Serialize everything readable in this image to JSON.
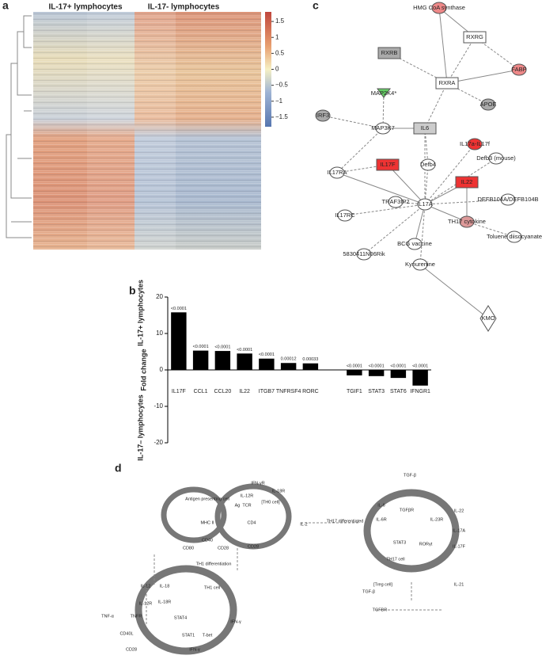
{
  "panel_labels": [
    "a",
    "b",
    "c",
    "d"
  ],
  "heatmap": {
    "column_groups": [
      "IL-17+ lymphocytes",
      "IL-17- lymphocytes"
    ],
    "colorbar_lim": [
      -1.8,
      1.8
    ],
    "colorbar_ticks": [
      1.5,
      1,
      0.5,
      0,
      {
        "value": -0.5,
        "label": "−0.5"
      },
      {
        "value": -1,
        "label": "−1"
      },
      {
        "value": -1.5,
        "label": "−1.5"
      }
    ]
  },
  "chart_data": {
    "type": "bar",
    "ylabel": "Fold change",
    "group_labels": [
      "IL-17+ lymphocytes",
      "IL-17– lymphocytes"
    ],
    "categories": [
      "IL17F",
      "CCL1",
      "CCL20",
      "IL22",
      "ITGB7",
      "TNFRSF4",
      "RORC",
      null,
      "TGIF1",
      "STAT3",
      "STAT6",
      "IFNGR1"
    ],
    "values": [
      15.8,
      5.3,
      5.2,
      4.5,
      3.1,
      1.9,
      1.8,
      null,
      -1.5,
      -1.7,
      -2.2,
      -4.3
    ],
    "p_values": [
      "<0.0001",
      "<0.0001",
      "<0.0001",
      "<0.0001",
      "<0.0001",
      "0.00012",
      "0.00033",
      null,
      "<0.0001",
      "<0.0001",
      "<0.0001",
      "<0.0001"
    ],
    "color": "#000000",
    "ylim": [
      -20,
      20
    ],
    "yticks": [
      -20,
      -10,
      0,
      10,
      20
    ]
  },
  "network": {
    "nodes": [
      "HMG CoA synthase",
      "RXRG",
      "RXRB",
      "FABP",
      "RXRA",
      "MAP2K4*",
      "APOE",
      "IRF3",
      "MAP3K7",
      "IL6",
      "IL17a-IL17f",
      "IL17F",
      "Defb4",
      "Defb3 (mouse)",
      "IL17RA",
      "IL22",
      "TRAF3IP2",
      "IL17A",
      "DEFB104A/DEFB104B",
      "IL17RC",
      "TH17 cytokine",
      "Toluene diisocyanate",
      "BCG vaccine",
      "5830411N06Rik",
      "Kynurenine",
      "KMO"
    ]
  },
  "pathway": {
    "labels": [
      "Antigen presenting cell",
      "MHC II",
      "CD40",
      "Ag",
      "TCR",
      "CD4",
      "IL-12R",
      "IL-18R",
      "[TH0 cell]",
      "CD80",
      "CD28",
      "CD28",
      "IL-2",
      "TH17 differentiated",
      "TH1 differentiation",
      "IL-12",
      "IL-18",
      "IL-12R",
      "IL-18R",
      "TH1 cell",
      "TNF-α",
      "TNFR",
      "STAT4",
      "CD40L",
      "STAT1",
      "T-bet",
      "IFN-γ",
      "CD28",
      "IFN-γ",
      "IFN-γR",
      "TGF-β",
      "IL-6",
      "IL-6R",
      "TGFβR",
      "IL-23R",
      "STAT3",
      "RORγt",
      "IL-17A",
      "IL-17F",
      "IL-22",
      "IL-21",
      "TH17 cell",
      "TGF-β",
      "TGFBR",
      "[Treg cell]"
    ]
  }
}
